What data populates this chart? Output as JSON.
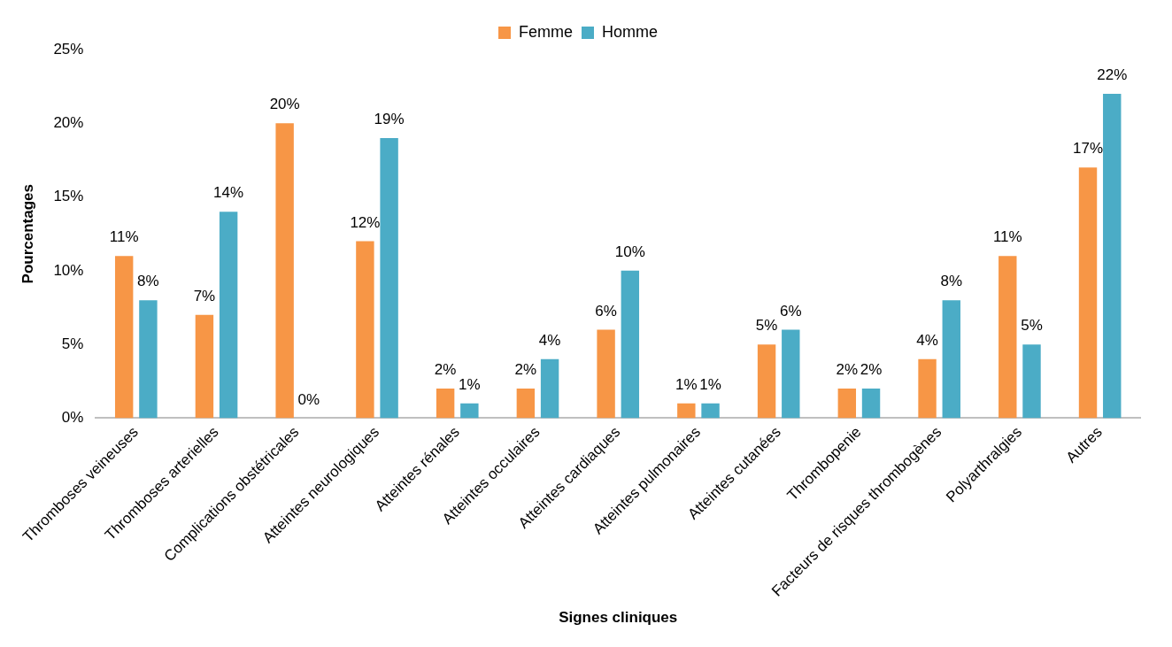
{
  "chart_data": {
    "type": "bar",
    "xlabel": "Signes cliniques",
    "ylabel": "Pourcentages",
    "categories": [
      "Thromboses veineuses",
      "Thromboses arterielles",
      "Complications obstétricales",
      "Atteintes neurologiques",
      "Atteintes rénales",
      "Atteintes occulaires",
      "Atteintes cardiaques",
      "Atteintes pulmonaires",
      "Atteintes cutanées",
      "Thrombopenie",
      "Facteurs de risques thrombogènes",
      "Polyarthralgies",
      "Autres"
    ],
    "series": [
      {
        "name": "Femme",
        "color": "#f79646",
        "values": [
          11,
          7,
          20,
          12,
          2,
          2,
          6,
          1,
          5,
          2,
          4,
          11,
          17
        ],
        "value_labels": [
          "11%",
          "7%",
          "20%",
          "12%",
          "2%",
          "2%",
          "6%",
          "1%",
          "5%",
          "2%",
          "4%",
          "11%",
          "17%"
        ]
      },
      {
        "name": "Homme",
        "color": "#4bacc6",
        "values": [
          8,
          14,
          0,
          19,
          1,
          4,
          10,
          1,
          6,
          2,
          8,
          5,
          22
        ],
        "value_labels": [
          "8%",
          "14%",
          "0%",
          "19%",
          "1%",
          "4%",
          "10%",
          "1%",
          "6%",
          "2%",
          "8%",
          "5%",
          "22%"
        ]
      }
    ],
    "ylim": [
      0,
      25
    ],
    "yticks": [
      {
        "value": 0,
        "label": "0%"
      },
      {
        "value": 5,
        "label": "5%"
      },
      {
        "value": 10,
        "label": "10%"
      },
      {
        "value": 15,
        "label": "15%"
      },
      {
        "value": 20,
        "label": "20%"
      },
      {
        "value": 25,
        "label": "25%"
      }
    ],
    "grid": false,
    "legend": "top"
  }
}
